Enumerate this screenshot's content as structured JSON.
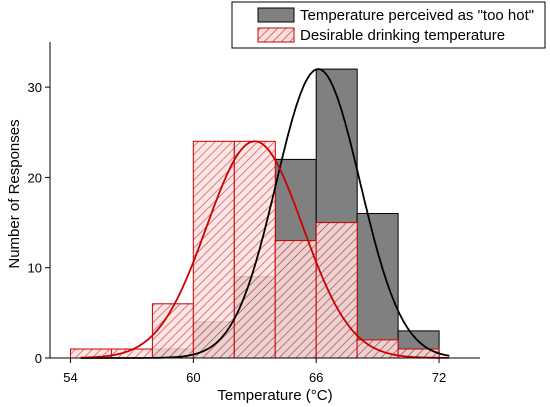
{
  "chart_data": {
    "type": "bar",
    "xlabel": "Temperature (°C)",
    "ylabel": "Number of Responses",
    "xlim": [
      53,
      74
    ],
    "ylim": [
      0,
      35
    ],
    "x_ticks": [
      54,
      60,
      66,
      72
    ],
    "y_ticks": [
      0,
      10,
      20,
      30
    ],
    "bin_width": 2,
    "legend_position": "top-right",
    "series": [
      {
        "name": "Temperature perceived as \"too hot\"",
        "color": "#808080",
        "bins": [
          {
            "x0": 58,
            "x1": 60,
            "value": 1
          },
          {
            "x0": 60,
            "x1": 62,
            "value": 4
          },
          {
            "x0": 62,
            "x1": 64,
            "value": 9
          },
          {
            "x0": 64,
            "x1": 66,
            "value": 22
          },
          {
            "x0": 66,
            "x1": 68,
            "value": 32
          },
          {
            "x0": 68,
            "x1": 70,
            "value": 16
          },
          {
            "x0": 70,
            "x1": 72,
            "value": 3
          }
        ],
        "fit": {
          "mean": 66.1,
          "sd": 2.05,
          "peak": 32
        }
      },
      {
        "name": "Desirable drinking temperature",
        "color": "#cc0000",
        "bins": [
          {
            "x0": 54,
            "x1": 56,
            "value": 1
          },
          {
            "x0": 56,
            "x1": 58,
            "value": 1
          },
          {
            "x0": 58,
            "x1": 60,
            "value": 6
          },
          {
            "x0": 60,
            "x1": 62,
            "value": 24
          },
          {
            "x0": 62,
            "x1": 64,
            "value": 24
          },
          {
            "x0": 64,
            "x1": 66,
            "value": 13
          },
          {
            "x0": 66,
            "x1": 68,
            "value": 15
          },
          {
            "x0": 68,
            "x1": 70,
            "value": 2
          },
          {
            "x0": 70,
            "x1": 72,
            "value": 1
          }
        ],
        "fit": {
          "mean": 63.0,
          "sd": 2.35,
          "peak": 24
        }
      }
    ]
  }
}
